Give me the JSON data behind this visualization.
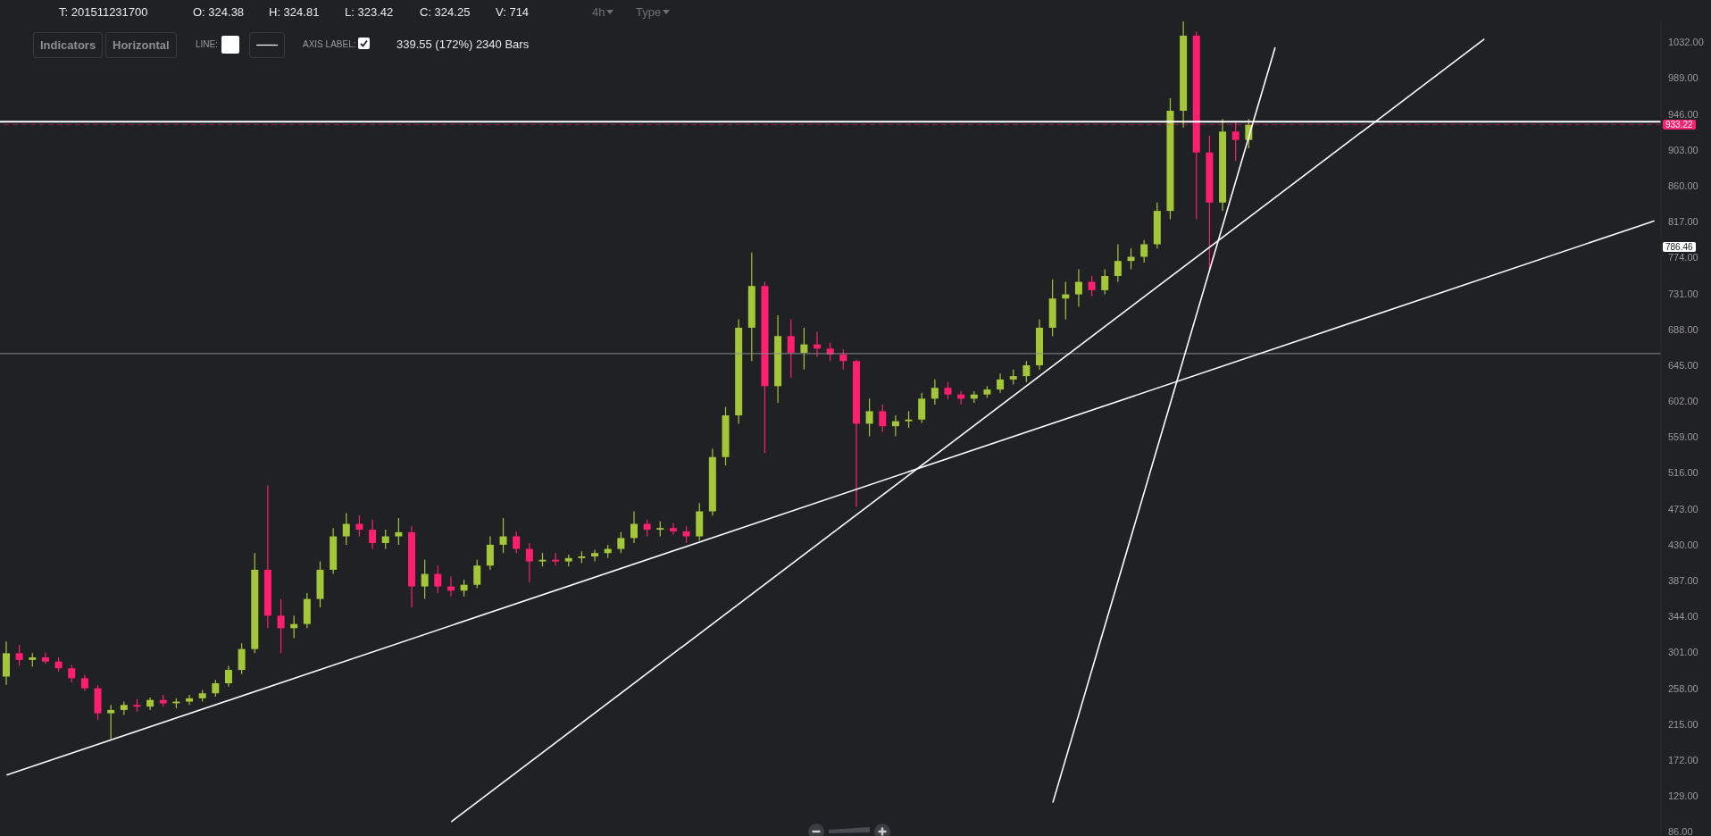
{
  "chart_data": {
    "type": "candlestick",
    "categories": [
      null,
      null,
      null,
      null,
      null,
      null,
      null,
      null,
      null,
      null,
      null,
      null,
      null,
      null,
      null,
      null,
      null,
      null,
      null,
      null,
      null,
      null,
      null,
      null,
      null,
      null,
      null,
      null,
      null,
      null,
      null,
      null,
      null,
      null,
      null,
      null,
      null,
      null,
      null,
      null,
      null,
      null,
      null,
      null,
      null,
      null,
      null,
      null,
      null,
      null,
      null,
      null,
      null,
      null,
      null,
      null,
      null,
      null,
      null,
      null,
      null,
      null,
      null,
      null,
      null,
      null,
      null,
      null,
      null,
      null,
      null,
      null,
      null,
      null,
      null,
      null,
      null,
      null,
      null,
      null,
      null,
      null,
      null,
      null,
      null,
      null,
      null,
      null,
      null,
      null,
      null,
      null,
      null,
      null,
      null,
      null,
      null,
      null,
      null,
      null,
      null,
      null,
      null,
      null,
      null,
      null,
      null,
      null,
      null,
      null,
      null,
      null,
      null,
      null,
      null,
      null,
      null,
      null,
      null,
      null,
      null,
      null,
      null,
      null,
      null,
      null,
      null
    ],
    "ohlc": [
      [
        272,
        314,
        262,
        300
      ],
      [
        300,
        310,
        285,
        292
      ],
      [
        292,
        300,
        284,
        295
      ],
      [
        295,
        301,
        287,
        290
      ],
      [
        290,
        295,
        278,
        282
      ],
      [
        282,
        286,
        265,
        270
      ],
      [
        270,
        274,
        255,
        258
      ],
      [
        258,
        262,
        220,
        228
      ],
      [
        228,
        238,
        197,
        232
      ],
      [
        232,
        242,
        226,
        238
      ],
      [
        238,
        245,
        230,
        236
      ],
      [
        236,
        247,
        232,
        244
      ],
      [
        244,
        250,
        236,
        240
      ],
      [
        240,
        246,
        234,
        242
      ],
      [
        242,
        250,
        238,
        246
      ],
      [
        246,
        256,
        242,
        252
      ],
      [
        252,
        268,
        248,
        264
      ],
      [
        264,
        285,
        260,
        280
      ],
      [
        280,
        312,
        275,
        305
      ],
      [
        305,
        420,
        300,
        400
      ],
      [
        400,
        501,
        330,
        345
      ],
      [
        345,
        365,
        300,
        330
      ],
      [
        330,
        345,
        318,
        335
      ],
      [
        335,
        372,
        330,
        365
      ],
      [
        365,
        410,
        355,
        400
      ],
      [
        400,
        450,
        395,
        440
      ],
      [
        440,
        468,
        430,
        455
      ],
      [
        455,
        465,
        440,
        448
      ],
      [
        448,
        460,
        425,
        432
      ],
      [
        432,
        448,
        425,
        440
      ],
      [
        440,
        462,
        430,
        445
      ],
      [
        445,
        452,
        355,
        380
      ],
      [
        380,
        412,
        365,
        395
      ],
      [
        395,
        405,
        372,
        380
      ],
      [
        380,
        392,
        368,
        375
      ],
      [
        375,
        388,
        368,
        382
      ],
      [
        382,
        412,
        378,
        405
      ],
      [
        405,
        440,
        400,
        430
      ],
      [
        430,
        462,
        420,
        440
      ],
      [
        440,
        446,
        420,
        425
      ],
      [
        425,
        432,
        385,
        410
      ],
      [
        410,
        420,
        404,
        412
      ],
      [
        412,
        420,
        405,
        410
      ],
      [
        410,
        418,
        404,
        414
      ],
      [
        414,
        422,
        408,
        416
      ],
      [
        416,
        424,
        410,
        420
      ],
      [
        420,
        430,
        414,
        425
      ],
      [
        425,
        445,
        420,
        438
      ],
      [
        438,
        470,
        432,
        455
      ],
      [
        455,
        460,
        440,
        448
      ],
      [
        448,
        458,
        440,
        450
      ],
      [
        450,
        456,
        442,
        446
      ],
      [
        446,
        452,
        432,
        440
      ],
      [
        440,
        480,
        435,
        470
      ],
      [
        470,
        545,
        465,
        535
      ],
      [
        535,
        595,
        525,
        585
      ],
      [
        585,
        700,
        575,
        690
      ],
      [
        690,
        780,
        650,
        740
      ],
      [
        740,
        745,
        540,
        620
      ],
      [
        620,
        705,
        600,
        680
      ],
      [
        680,
        700,
        630,
        660
      ],
      [
        660,
        690,
        640,
        670
      ],
      [
        670,
        685,
        655,
        665
      ],
      [
        665,
        672,
        650,
        658
      ],
      [
        658,
        664,
        640,
        650
      ],
      [
        650,
        652,
        475,
        575
      ],
      [
        575,
        605,
        560,
        590
      ],
      [
        590,
        598,
        565,
        572
      ],
      [
        572,
        585,
        560,
        578
      ],
      [
        578,
        590,
        570,
        580
      ],
      [
        580,
        612,
        576,
        605
      ],
      [
        605,
        628,
        598,
        618
      ],
      [
        618,
        625,
        604,
        610
      ],
      [
        610,
        614,
        598,
        605
      ],
      [
        605,
        614,
        600,
        610
      ],
      [
        610,
        620,
        606,
        616
      ],
      [
        616,
        635,
        612,
        628
      ],
      [
        628,
        640,
        622,
        632
      ],
      [
        632,
        650,
        625,
        645
      ],
      [
        645,
        700,
        640,
        690
      ],
      [
        690,
        748,
        680,
        725
      ],
      [
        725,
        745,
        700,
        730
      ],
      [
        730,
        760,
        715,
        745
      ],
      [
        745,
        752,
        728,
        735
      ],
      [
        735,
        760,
        730,
        752
      ],
      [
        752,
        790,
        745,
        770
      ],
      [
        770,
        785,
        760,
        775
      ],
      [
        775,
        795,
        768,
        790
      ],
      [
        790,
        840,
        785,
        830
      ],
      [
        830,
        965,
        820,
        950
      ],
      [
        950,
        1057,
        930,
        1040
      ],
      [
        1040,
        1045,
        820,
        900
      ],
      [
        900,
        920,
        760,
        840
      ],
      [
        840,
        940,
        830,
        925
      ],
      [
        925,
        938,
        890,
        915
      ],
      [
        915,
        940,
        905,
        933.22
      ],
      null,
      null,
      null,
      null,
      null,
      null,
      null,
      null,
      null,
      null,
      null,
      null,
      null,
      null,
      null,
      null,
      null,
      null,
      null,
      null,
      null,
      null,
      null,
      null,
      null,
      null,
      null,
      null,
      null,
      null,
      null
    ],
    "colors": [
      "#a4c639",
      "#ff1f6e",
      "#a4c639",
      "#ff1f6e",
      "#ff1f6e",
      "#ff1f6e",
      "#ff1f6e",
      "#ff1f6e",
      "#a4c639",
      "#a4c639",
      "#ff1f6e",
      "#a4c639",
      "#ff1f6e",
      "#a4c639",
      "#a4c639",
      "#a4c639",
      "#a4c639",
      "#a4c639",
      "#a4c639",
      "#a4c639",
      "#ff1f6e",
      "#ff1f6e",
      "#a4c639",
      "#a4c639",
      "#a4c639",
      "#a4c639",
      "#a4c639",
      "#ff1f6e",
      "#ff1f6e",
      "#a4c639",
      "#a4c639",
      "#ff1f6e",
      "#a4c639",
      "#ff1f6e",
      "#ff1f6e",
      "#a4c639",
      "#a4c639",
      "#a4c639",
      "#a4c639",
      "#ff1f6e",
      "#ff1f6e",
      "#a4c639",
      "#ff1f6e",
      "#a4c639",
      "#a4c639",
      "#a4c639",
      "#a4c639",
      "#a4c639",
      "#a4c639",
      "#ff1f6e",
      "#a4c639",
      "#ff1f6e",
      "#ff1f6e",
      "#a4c639",
      "#a4c639",
      "#a4c639",
      "#a4c639",
      "#a4c639",
      "#ff1f6e",
      "#a4c639",
      "#ff1f6e",
      "#a4c639",
      "#ff1f6e",
      "#ff1f6e",
      "#ff1f6e",
      "#ff1f6e",
      "#a4c639",
      "#ff1f6e",
      "#a4c639",
      "#a4c639",
      "#a4c639",
      "#a4c639",
      "#ff1f6e",
      "#ff1f6e",
      "#a4c639",
      "#a4c639",
      "#a4c639",
      "#a4c639",
      "#a4c639",
      "#a4c639",
      "#a4c639",
      "#a4c639",
      "#a4c639",
      "#ff1f6e",
      "#a4c639",
      "#a4c639",
      "#a4c639",
      "#a4c639",
      "#a4c639",
      "#a4c639",
      "#a4c639",
      "#ff1f6e",
      "#ff1f6e",
      "#a4c639",
      "#ff1f6e",
      "#a4c639",
      null,
      null,
      null,
      null,
      null,
      null,
      null,
      null,
      null,
      null,
      null,
      null,
      null,
      null,
      null,
      null,
      null,
      null,
      null,
      null,
      null,
      null,
      null,
      null,
      null,
      null,
      null,
      null,
      null,
      null,
      null
    ],
    "series": [
      {
        "type": "line",
        "color": "#ffffff",
        "values": [
          154,
          null,
          null,
          null,
          null,
          null,
          null,
          null,
          null,
          null,
          null,
          null,
          null,
          null,
          null,
          null,
          null,
          null,
          null,
          null,
          null,
          null,
          null,
          null,
          null,
          null,
          null,
          null,
          null,
          null,
          null,
          null,
          null,
          null,
          null,
          null,
          null,
          null,
          null,
          null,
          null,
          null,
          null,
          null,
          null,
          null,
          null,
          null,
          null,
          null,
          null,
          null,
          null,
          null,
          null,
          null,
          null,
          null,
          null,
          null,
          null,
          null,
          null,
          null,
          null,
          null,
          null,
          null,
          null,
          null,
          null,
          null,
          null,
          null,
          null,
          null,
          null,
          null,
          null,
          null,
          null,
          null,
          null,
          null,
          null,
          null,
          null,
          null,
          null,
          null,
          null,
          null,
          null,
          null,
          null,
          null,
          null,
          null,
          null,
          null,
          null,
          null,
          null,
          null,
          null,
          null,
          null,
          null,
          null,
          null,
          null,
          null,
          null,
          null,
          null,
          null,
          null,
          null,
          null,
          null,
          null,
          null,
          null,
          null,
          null,
          null,
          818
        ]
      },
      {
        "type": "line",
        "color": "#ffffff",
        "values": [
          null,
          null,
          null,
          null,
          null,
          null,
          null,
          null,
          null,
          null,
          null,
          null,
          null,
          null,
          null,
          null,
          null,
          null,
          null,
          null,
          null,
          null,
          null,
          null,
          null,
          null,
          null,
          null,
          null,
          null,
          null,
          null,
          null,
          null,
          98,
          null,
          null,
          null,
          null,
          null,
          null,
          null,
          null,
          null,
          null,
          null,
          null,
          null,
          null,
          null,
          null,
          null,
          null,
          null,
          null,
          null,
          null,
          null,
          null,
          null,
          null,
          null,
          null,
          null,
          null,
          null,
          null,
          null,
          null,
          null,
          null,
          null,
          null,
          null,
          null,
          null,
          null,
          null,
          null,
          null,
          null,
          null,
          null,
          null,
          null,
          null,
          null,
          null,
          null,
          null,
          null,
          null,
          null,
          null,
          null,
          null,
          null,
          null,
          null,
          null,
          null,
          null,
          null,
          null,
          null,
          null,
          null,
          null,
          null,
          null,
          null,
          null,
          null,
          1036,
          null,
          null,
          null,
          null,
          null,
          null,
          null,
          null,
          null,
          null,
          null,
          null,
          null
        ]
      },
      {
        "type": "line",
        "color": "#ffffff",
        "values": [
          null,
          null,
          null,
          null,
          null,
          null,
          null,
          null,
          null,
          null,
          null,
          null,
          null,
          null,
          null,
          null,
          null,
          null,
          null,
          null,
          null,
          null,
          null,
          null,
          null,
          null,
          null,
          null,
          null,
          null,
          null,
          null,
          null,
          null,
          null,
          null,
          null,
          null,
          null,
          null,
          null,
          null,
          null,
          null,
          null,
          null,
          null,
          null,
          null,
          null,
          null,
          null,
          null,
          null,
          null,
          null,
          null,
          null,
          null,
          null,
          null,
          null,
          null,
          null,
          null,
          null,
          null,
          null,
          null,
          null,
          null,
          null,
          null,
          null,
          null,
          null,
          null,
          null,
          null,
          null,
          121,
          null,
          null,
          null,
          null,
          null,
          null,
          null,
          null,
          null,
          null,
          null,
          null,
          null,
          null,
          null,
          null,
          1026,
          null,
          null,
          null,
          null,
          null,
          null,
          null,
          null,
          null,
          null,
          null,
          null,
          null,
          null,
          null,
          null,
          null,
          null,
          null,
          null,
          null,
          null,
          null,
          null,
          null,
          null,
          null,
          null,
          null
        ]
      }
    ],
    "ylim": [
      81,
      1057
    ],
    "yticks": [
      {
        "value": 86,
        "label": "86.00"
      },
      {
        "value": 129,
        "label": "129.00"
      },
      {
        "value": 172,
        "label": "172.00"
      },
      {
        "value": 215,
        "label": "215.00"
      },
      {
        "value": 258,
        "label": "258.00"
      },
      {
        "value": 301,
        "label": "301.00"
      },
      {
        "value": 344,
        "label": "344.00"
      },
      {
        "value": 387,
        "label": "387.00"
      },
      {
        "value": 430,
        "label": "430.00"
      },
      {
        "value": 473,
        "label": "473.00"
      },
      {
        "value": 516,
        "label": "516.00"
      },
      {
        "value": 559,
        "label": "559.00"
      },
      {
        "value": 602,
        "label": "602.00"
      },
      {
        "value": 645,
        "label": "645.00"
      },
      {
        "value": 688,
        "label": "688.00"
      },
      {
        "value": 731,
        "label": "731.00"
      },
      {
        "value": 774,
        "label": "774.00"
      },
      {
        "value": 817,
        "label": "817.00"
      },
      {
        "value": 860,
        "label": "860.00"
      },
      {
        "value": 903,
        "label": "903.00"
      },
      {
        "value": 946,
        "label": "946.00"
      },
      {
        "value": 989,
        "label": "989.00"
      },
      {
        "value": 1032,
        "label": "1032.00"
      }
    ],
    "tick_labels": "y",
    "ref_lines": [
      {
        "axis": "y",
        "value": 937,
        "color": "#ffffff",
        "line_style": "solid"
      },
      {
        "axis": "y",
        "value": 933.22,
        "label": "933.22",
        "color": "#ff1f6e",
        "line_style": "dashed"
      },
      {
        "axis": "y",
        "value": 659,
        "color": "#8a8a8a",
        "line_style": "solid"
      }
    ],
    "annotations": [
      "T: 201511231700",
      "O: 324.38",
      "H: 324.81",
      "L: 323.42",
      "C: 324.25",
      "V: 714",
      "4h",
      "Type",
      "Indicators",
      "Horizontal",
      "LINE:",
      "AXIS LABEL:",
      "339.55 (172%) 2340 Bars",
      {
        "text": "786.46",
        "y": 786.46
      }
    ]
  }
}
